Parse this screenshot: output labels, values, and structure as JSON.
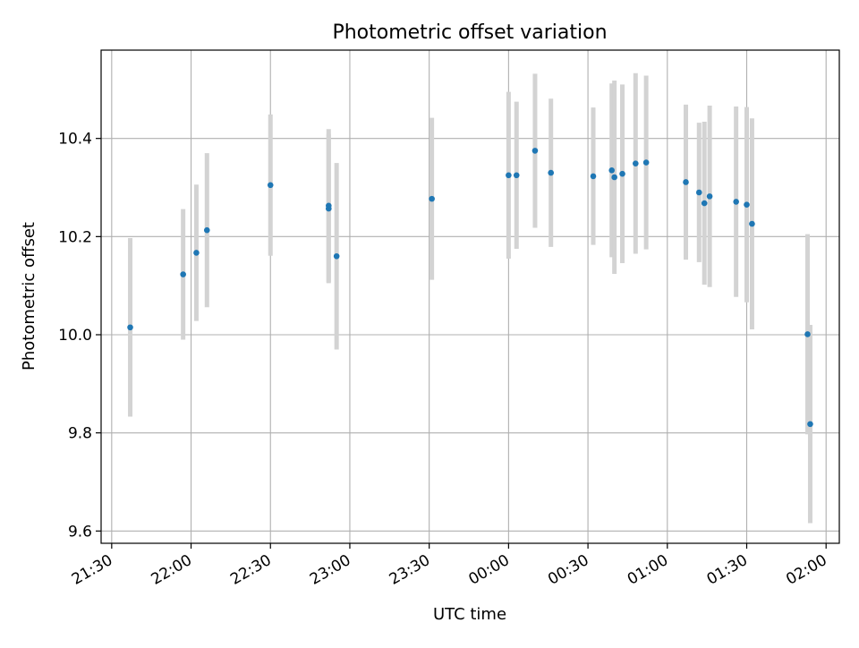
{
  "chart_data": {
    "type": "scatter",
    "title": "Photometric offset variation",
    "xlabel": "UTC time",
    "ylabel": "Photometric offset",
    "x_ticks": [
      "21:30",
      "22:00",
      "22:30",
      "23:00",
      "23:30",
      "00:00",
      "00:30",
      "01:00",
      "01:30",
      "02:00"
    ],
    "y_ticks": [
      9.6,
      9.8,
      10.0,
      10.2,
      10.4
    ],
    "y_tick_labels": [
      "9.6",
      "9.8",
      "10.0",
      "10.2",
      "10.4"
    ],
    "xlim": [
      "21:26",
      "02:05"
    ],
    "ylim": [
      9.575,
      10.58
    ],
    "grid": true,
    "series": [
      {
        "marker_color": "#1f77b4",
        "errorbar_color": "#d3d3d3",
        "points": [
          {
            "x": "21:37",
            "y": 10.015,
            "err": 0.182
          },
          {
            "x": "21:57",
            "y": 10.123,
            "err": 0.133
          },
          {
            "x": "22:02",
            "y": 10.167,
            "err": 0.139
          },
          {
            "x": "22:06",
            "y": 10.213,
            "err": 0.157
          },
          {
            "x": "22:30",
            "y": 10.305,
            "err": 0.144
          },
          {
            "x": "22:52",
            "y": 10.257,
            "err": 0.152
          },
          {
            "x": "22:52",
            "y": 10.263,
            "err": 0.156
          },
          {
            "x": "22:55",
            "y": 10.16,
            "err": 0.19
          },
          {
            "x": "23:31",
            "y": 10.277,
            "err": 0.165
          },
          {
            "x": "00:00",
            "y": 10.325,
            "err": 0.17
          },
          {
            "x": "00:03",
            "y": 10.325,
            "err": 0.15
          },
          {
            "x": "00:10",
            "y": 10.375,
            "err": 0.157
          },
          {
            "x": "00:16",
            "y": 10.33,
            "err": 0.151
          },
          {
            "x": "00:32",
            "y": 10.323,
            "err": 0.14
          },
          {
            "x": "00:39",
            "y": 10.335,
            "err": 0.177
          },
          {
            "x": "00:40",
            "y": 10.321,
            "err": 0.197
          },
          {
            "x": "00:43",
            "y": 10.328,
            "err": 0.182
          },
          {
            "x": "00:48",
            "y": 10.349,
            "err": 0.184
          },
          {
            "x": "00:52",
            "y": 10.351,
            "err": 0.177
          },
          {
            "x": "01:07",
            "y": 10.311,
            "err": 0.158
          },
          {
            "x": "01:12",
            "y": 10.29,
            "err": 0.142
          },
          {
            "x": "01:14",
            "y": 10.268,
            "err": 0.166
          },
          {
            "x": "01:16",
            "y": 10.282,
            "err": 0.185
          },
          {
            "x": "01:26",
            "y": 10.271,
            "err": 0.194
          },
          {
            "x": "01:30",
            "y": 10.265,
            "err": 0.199
          },
          {
            "x": "01:32",
            "y": 10.226,
            "err": 0.215
          },
          {
            "x": "01:53",
            "y": 10.001,
            "err": 0.204
          },
          {
            "x": "01:54",
            "y": 9.818,
            "err": 0.202
          }
        ]
      }
    ]
  }
}
